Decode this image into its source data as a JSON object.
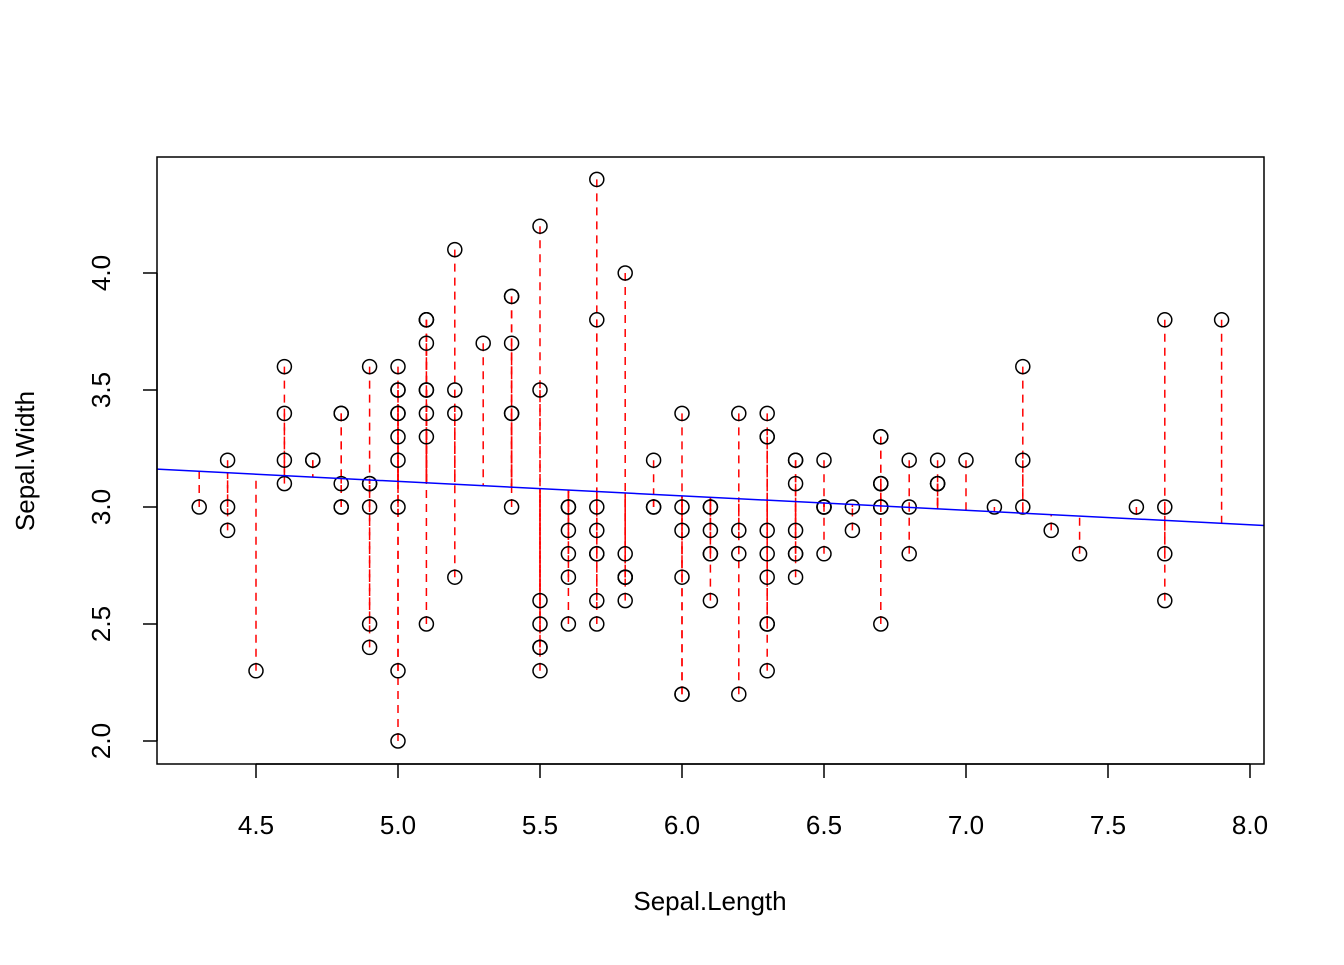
{
  "chart_data": {
    "type": "scatter",
    "title": "",
    "xlabel": "Sepal.Length",
    "ylabel": "Sepal.Width",
    "xlim": [
      4.156,
      8.044
    ],
    "ylim": [
      1.904,
      4.496
    ],
    "xticks": [
      "4.5",
      "5.0",
      "5.5",
      "6.0",
      "6.5",
      "7.0",
      "7.5",
      "8.0"
    ],
    "yticks": [
      "2.0",
      "2.5",
      "3.0",
      "3.5",
      "4.0"
    ],
    "regression": {
      "intercept": 3.41895,
      "slope": -0.06188,
      "color": "#0000ff"
    },
    "residual_color": "#ff0000",
    "point_color": "#000000",
    "x": [
      5.1,
      4.9,
      4.7,
      4.6,
      5.0,
      5.4,
      4.6,
      5.0,
      4.4,
      4.9,
      5.4,
      4.8,
      4.8,
      4.3,
      5.8,
      5.7,
      5.4,
      5.1,
      5.7,
      5.1,
      5.4,
      5.1,
      4.6,
      5.1,
      4.8,
      5.0,
      5.0,
      5.2,
      5.2,
      4.7,
      4.8,
      5.4,
      5.2,
      5.5,
      4.9,
      5.0,
      5.5,
      4.9,
      4.4,
      5.1,
      5.0,
      4.5,
      4.4,
      5.0,
      5.1,
      4.8,
      5.1,
      4.6,
      5.3,
      5.0,
      7.0,
      6.4,
      6.9,
      5.5,
      6.5,
      5.7,
      6.3,
      4.9,
      6.6,
      5.2,
      5.0,
      5.9,
      6.0,
      6.1,
      5.6,
      6.7,
      5.6,
      5.8,
      6.2,
      5.6,
      5.9,
      6.1,
      6.3,
      6.1,
      6.4,
      6.6,
      6.8,
      6.7,
      6.0,
      5.7,
      5.5,
      5.5,
      5.8,
      6.0,
      5.4,
      6.0,
      6.7,
      6.3,
      5.6,
      5.5,
      5.5,
      6.1,
      5.8,
      5.0,
      5.6,
      5.7,
      5.7,
      6.2,
      5.1,
      5.7,
      6.3,
      5.8,
      7.1,
      6.3,
      6.5,
      7.6,
      4.9,
      7.3,
      6.7,
      7.2,
      6.5,
      6.4,
      6.8,
      5.7,
      5.8,
      6.4,
      6.5,
      7.7,
      7.7,
      6.0,
      6.9,
      5.6,
      7.7,
      6.3,
      6.7,
      7.2,
      6.2,
      6.1,
      6.4,
      7.2,
      7.4,
      7.9,
      6.4,
      6.3,
      6.1,
      7.7,
      6.3,
      6.4,
      6.0,
      6.9,
      6.7,
      6.9,
      5.8,
      6.8,
      6.7,
      6.7,
      6.3,
      6.5,
      6.2,
      5.9
    ],
    "y": [
      3.5,
      3.0,
      3.2,
      3.1,
      3.6,
      3.9,
      3.4,
      3.4,
      2.9,
      3.1,
      3.7,
      3.4,
      3.0,
      3.0,
      4.0,
      4.4,
      3.9,
      3.5,
      3.8,
      3.8,
      3.4,
      3.7,
      3.6,
      3.3,
      3.4,
      3.0,
      3.4,
      3.5,
      3.4,
      3.2,
      3.1,
      3.4,
      4.1,
      4.2,
      3.1,
      3.2,
      3.5,
      3.6,
      3.0,
      3.4,
      3.5,
      2.3,
      3.2,
      3.5,
      3.8,
      3.0,
      3.8,
      3.2,
      3.7,
      3.3,
      3.2,
      3.2,
      3.1,
      2.3,
      2.8,
      2.8,
      3.3,
      2.4,
      2.9,
      2.7,
      2.0,
      3.0,
      2.2,
      2.9,
      2.9,
      3.1,
      3.0,
      2.7,
      2.2,
      2.5,
      3.2,
      2.8,
      2.5,
      2.8,
      2.9,
      3.0,
      2.8,
      3.0,
      2.9,
      2.6,
      2.4,
      2.4,
      2.7,
      2.7,
      3.0,
      3.4,
      3.1,
      2.3,
      3.0,
      2.5,
      2.6,
      3.0,
      2.6,
      2.3,
      2.7,
      3.0,
      2.9,
      2.9,
      2.5,
      2.8,
      3.3,
      2.7,
      3.0,
      2.9,
      3.0,
      3.0,
      2.5,
      2.9,
      2.5,
      3.6,
      3.2,
      2.7,
      3.0,
      2.5,
      2.8,
      3.2,
      3.0,
      3.8,
      2.6,
      2.2,
      3.2,
      2.8,
      2.8,
      2.7,
      3.3,
      3.2,
      2.8,
      3.0,
      2.8,
      3.0,
      2.8,
      3.8,
      2.8,
      2.8,
      2.6,
      3.0,
      3.4,
      3.1,
      3.0,
      3.1,
      3.1,
      3.1,
      2.7,
      3.2,
      3.3,
      3.0,
      2.5,
      3.0,
      3.4,
      3.0
    ]
  }
}
